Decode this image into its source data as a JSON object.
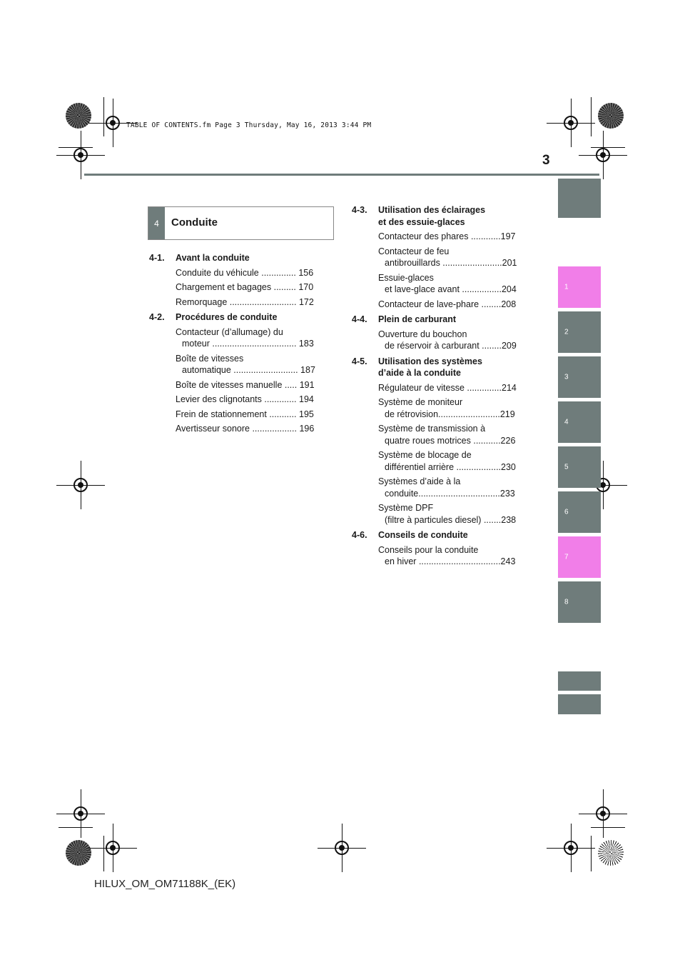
{
  "header_stamp": "TABLE OF CONTENTS.fm  Page 3  Thursday, May 16, 2013  3:44 PM",
  "page_number": "3",
  "section": {
    "number": "4",
    "title": "Conduite"
  },
  "side_tabs": [
    "1",
    "2",
    "3",
    "4",
    "5",
    "6",
    "7",
    "8"
  ],
  "left_column": [
    {
      "num": "4-1.",
      "title": [
        "Avant la conduite"
      ],
      "entries": [
        {
          "lines": [
            "Conduite du véhicule .............. 156"
          ]
        },
        {
          "lines": [
            "Chargement et bagages ......... 170"
          ]
        },
        {
          "lines": [
            "Remorquage ........................... 172"
          ]
        }
      ]
    },
    {
      "num": "4-2.",
      "title": [
        "Procédures de conduite"
      ],
      "entries": [
        {
          "lines": [
            "Contacteur (d’allumage) du",
            "moteur .................................. 183"
          ]
        },
        {
          "lines": [
            "Boîte de vitesses",
            "automatique .......................... 187"
          ]
        },
        {
          "lines": [
            "Boîte de vitesses manuelle ..... 191"
          ]
        },
        {
          "lines": [
            "Levier des clignotants ............. 194"
          ]
        },
        {
          "lines": [
            "Frein de stationnement ........... 195"
          ]
        },
        {
          "lines": [
            "Avertisseur sonore .................. 196"
          ]
        }
      ]
    }
  ],
  "right_column": [
    {
      "num": "4-3.",
      "title": [
        "Utilisation des éclairages",
        "et des essuie-glaces"
      ],
      "entries": [
        {
          "lines": [
            "Contacteur des phares ............197"
          ]
        },
        {
          "lines": [
            "Contacteur de feu",
            "antibrouillards ........................201"
          ]
        },
        {
          "lines": [
            "Essuie-glaces",
            "et lave-glace avant ................204"
          ]
        },
        {
          "lines": [
            "Contacteur de lave-phare ........208"
          ]
        }
      ]
    },
    {
      "num": "4-4.",
      "title": [
        "Plein de carburant"
      ],
      "entries": [
        {
          "lines": [
            "Ouverture du bouchon",
            "de réservoir à carburant ........209"
          ]
        }
      ]
    },
    {
      "num": "4-5.",
      "title": [
        "Utilisation des systèmes",
        "d’aide à la conduite"
      ],
      "entries": [
        {
          "lines": [
            "Régulateur de vitesse ..............214"
          ]
        },
        {
          "lines": [
            "Système de moniteur",
            "de rétrovision.........................219"
          ]
        },
        {
          "lines": [
            "Système de transmission à",
            "quatre roues motrices ...........226"
          ]
        },
        {
          "lines": [
            "Système de blocage de",
            "différentiel arrière ..................230"
          ]
        },
        {
          "lines": [
            "Systèmes d’aide à la",
            "conduite.................................233"
          ]
        },
        {
          "lines": [
            "Système DPF",
            "(filtre à particules diesel) .......238"
          ]
        }
      ]
    },
    {
      "num": "4-6.",
      "title": [
        "Conseils de conduite"
      ],
      "entries": [
        {
          "lines": [
            "Conseils pour la conduite",
            "en hiver .................................243"
          ]
        }
      ]
    }
  ],
  "footer_code": "HILUX_OM_OM71188K_(EK)"
}
